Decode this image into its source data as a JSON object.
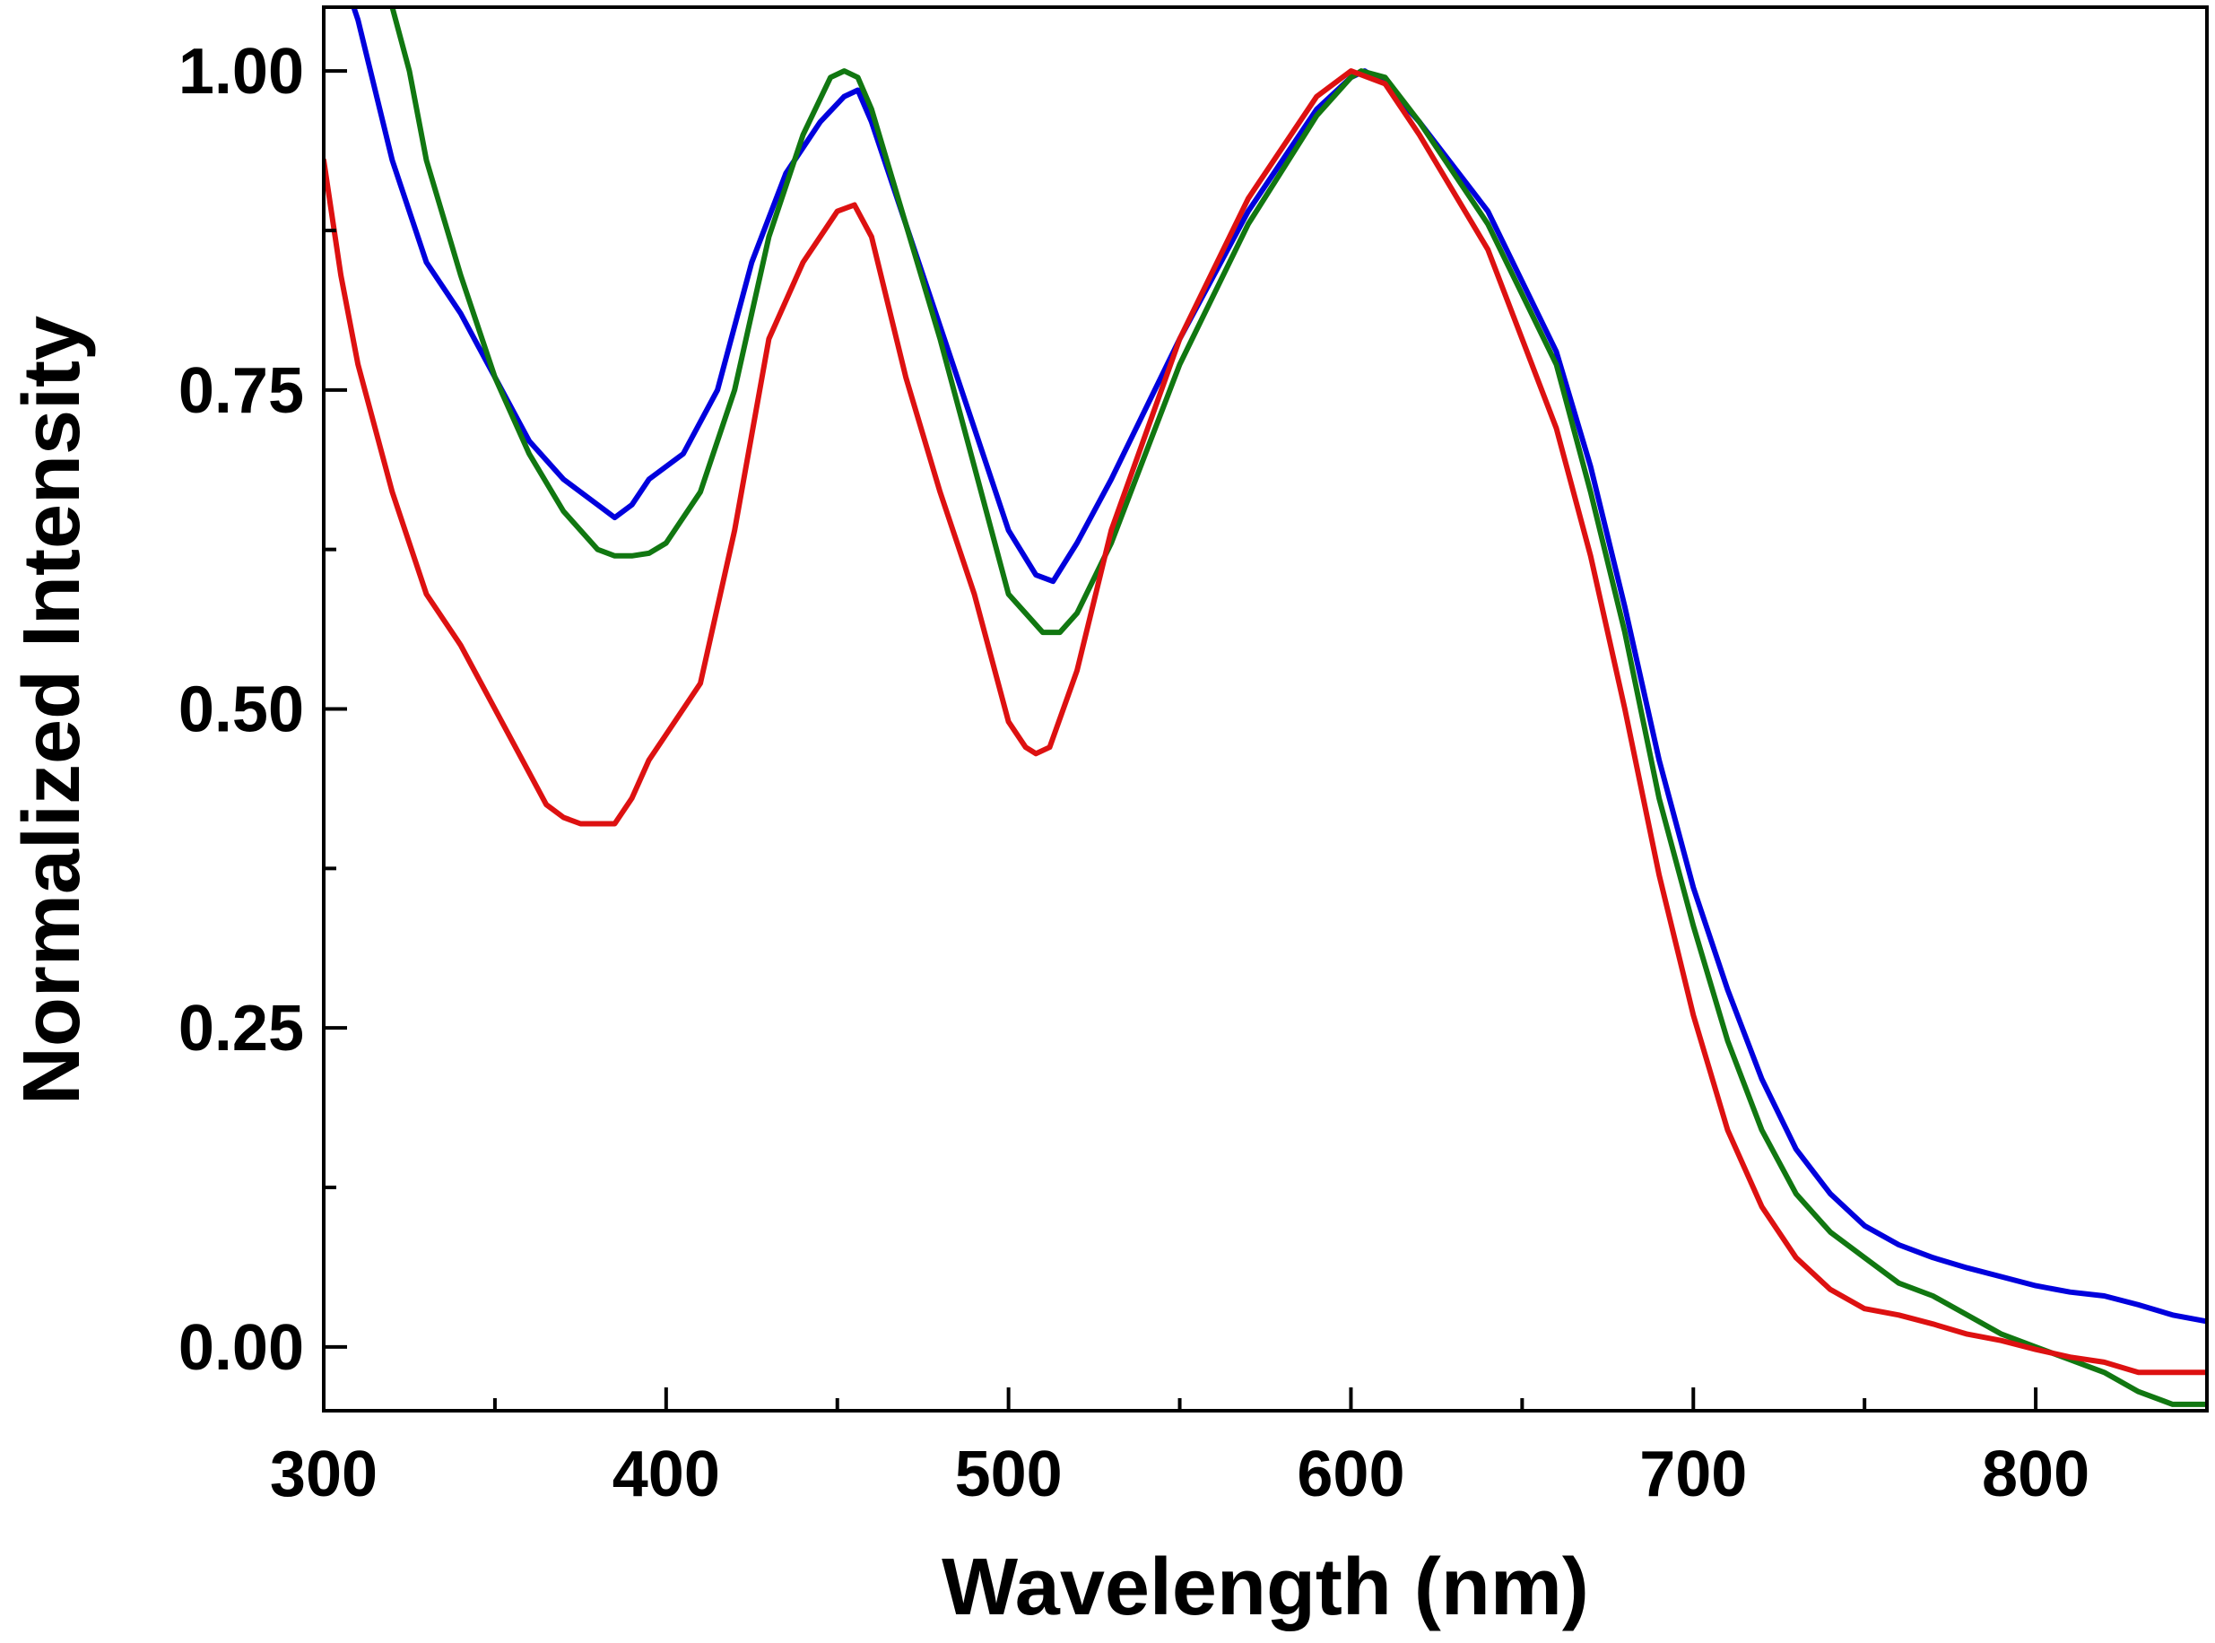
{
  "chart_data": {
    "type": "line",
    "title": "",
    "xlabel": "Wavelength (nm)",
    "ylabel": "Normalized Intensity",
    "xlim": [
      300,
      850
    ],
    "ylim": [
      -0.05,
      1.05
    ],
    "xticks": [
      300,
      400,
      500,
      600,
      700,
      800
    ],
    "xtick_labels": [
      "300",
      "400",
      "500",
      "600",
      "700",
      "800"
    ],
    "xminor": [
      350,
      450,
      550,
      650,
      750
    ],
    "yticks": [
      0.0,
      0.25,
      0.5,
      0.75,
      1.0
    ],
    "ytick_labels": [
      "0.00",
      "0.25",
      "0.50",
      "0.75",
      "1.00"
    ],
    "yminor": [
      0.125,
      0.375,
      0.625,
      0.875
    ],
    "grid": false,
    "legend": "none",
    "series": [
      {
        "color": "#0000dd",
        "x": [
          300,
          305,
          310,
          320,
          330,
          340,
          350,
          360,
          370,
          380,
          385,
          390,
          395,
          405,
          415,
          425,
          435,
          445,
          452,
          456,
          460,
          470,
          480,
          490,
          500,
          508,
          513,
          520,
          530,
          550,
          570,
          590,
          600,
          604,
          610,
          620,
          640,
          660,
          670,
          680,
          690,
          700,
          710,
          720,
          730,
          740,
          750,
          760,
          770,
          780,
          790,
          800,
          810,
          820,
          830,
          840,
          850
        ],
        "y": [
          1.12,
          1.08,
          1.04,
          0.93,
          0.85,
          0.81,
          0.76,
          0.71,
          0.68,
          0.66,
          0.65,
          0.66,
          0.68,
          0.7,
          0.75,
          0.85,
          0.92,
          0.96,
          0.98,
          0.985,
          0.96,
          0.88,
          0.8,
          0.72,
          0.64,
          0.605,
          0.6,
          0.63,
          0.68,
          0.79,
          0.89,
          0.97,
          0.995,
          1.0,
          0.99,
          0.96,
          0.89,
          0.78,
          0.69,
          0.58,
          0.46,
          0.36,
          0.28,
          0.21,
          0.155,
          0.12,
          0.095,
          0.08,
          0.07,
          0.062,
          0.055,
          0.048,
          0.043,
          0.04,
          0.033,
          0.025,
          0.02
        ]
      },
      {
        "color": "#117711",
        "x": [
          320,
          325,
          330,
          340,
          350,
          360,
          370,
          380,
          385,
          390,
          395,
          400,
          410,
          420,
          430,
          440,
          448,
          452,
          456,
          460,
          470,
          480,
          490,
          500,
          510,
          515,
          520,
          530,
          550,
          570,
          590,
          600,
          603,
          610,
          620,
          640,
          660,
          670,
          680,
          690,
          700,
          710,
          720,
          730,
          740,
          750,
          760,
          770,
          780,
          790,
          800,
          810,
          820,
          830,
          840,
          850
        ],
        "y": [
          1.05,
          1.0,
          0.93,
          0.84,
          0.76,
          0.7,
          0.655,
          0.625,
          0.62,
          0.62,
          0.622,
          0.63,
          0.67,
          0.75,
          0.87,
          0.95,
          0.995,
          1.0,
          0.995,
          0.97,
          0.88,
          0.79,
          0.69,
          0.59,
          0.56,
          0.56,
          0.575,
          0.63,
          0.77,
          0.88,
          0.965,
          0.995,
          1.0,
          0.995,
          0.96,
          0.88,
          0.77,
          0.67,
          0.56,
          0.43,
          0.33,
          0.24,
          0.17,
          0.12,
          0.09,
          0.07,
          0.05,
          0.04,
          0.025,
          0.01,
          0.0,
          -0.01,
          -0.02,
          -0.035,
          -0.045,
          -0.045
        ]
      },
      {
        "color": "#dd1111",
        "x": [
          300,
          305,
          310,
          320,
          330,
          340,
          350,
          360,
          365,
          370,
          375,
          380,
          385,
          390,
          395,
          400,
          410,
          420,
          430,
          440,
          445,
          450,
          455,
          460,
          470,
          480,
          490,
          500,
          505,
          508,
          512,
          520,
          530,
          550,
          570,
          590,
          600,
          610,
          620,
          640,
          660,
          670,
          680,
          690,
          700,
          710,
          720,
          730,
          740,
          750,
          760,
          770,
          780,
          790,
          800,
          810,
          820,
          830,
          840,
          850
        ],
        "y": [
          0.93,
          0.84,
          0.77,
          0.67,
          0.59,
          0.55,
          0.5,
          0.45,
          0.425,
          0.415,
          0.41,
          0.41,
          0.41,
          0.43,
          0.46,
          0.48,
          0.52,
          0.64,
          0.79,
          0.85,
          0.87,
          0.89,
          0.895,
          0.87,
          0.76,
          0.67,
          0.59,
          0.49,
          0.47,
          0.465,
          0.47,
          0.53,
          0.64,
          0.79,
          0.9,
          0.98,
          1.0,
          0.99,
          0.95,
          0.86,
          0.72,
          0.62,
          0.5,
          0.37,
          0.26,
          0.17,
          0.11,
          0.07,
          0.045,
          0.03,
          0.025,
          0.018,
          0.01,
          0.005,
          -0.002,
          -0.008,
          -0.012,
          -0.02,
          -0.02,
          -0.02
        ]
      }
    ]
  }
}
